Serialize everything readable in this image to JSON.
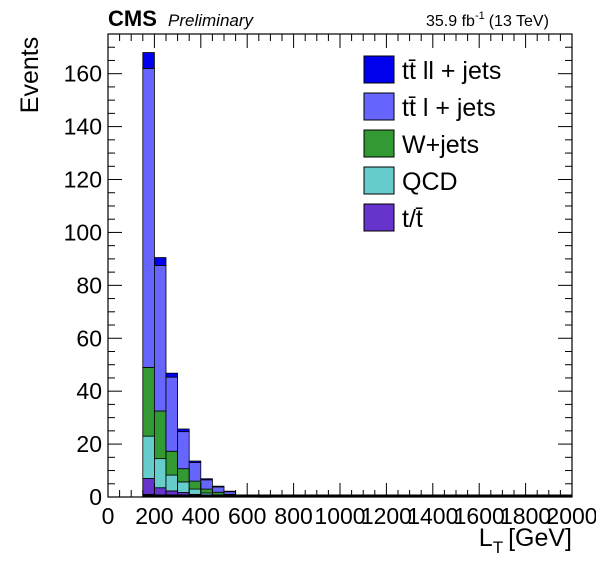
{
  "header": {
    "experiment": "CMS",
    "status": "Preliminary",
    "lumi": "35.9 fb",
    "lumi_exp": "-1",
    "energy": "(13 TeV)"
  },
  "chart_data": {
    "type": "bar",
    "style": "stacked-histogram",
    "xlabel": "L",
    "xlabel_sub": "T",
    "xlabel_unit": "[GeV]",
    "ylabel": "Events",
    "xlim": [
      0,
      2000
    ],
    "ylim": [
      0,
      175
    ],
    "x_ticks": [
      "0",
      "200",
      "400",
      "600",
      "800",
      "1000",
      "1200",
      "1400",
      "1600",
      "1800",
      "2000"
    ],
    "y_ticks": [
      "0",
      "20",
      "40",
      "60",
      "80",
      "100",
      "120",
      "140",
      "160"
    ],
    "bin_edges": [
      150,
      200,
      250,
      300,
      350,
      400,
      450,
      500,
      550,
      600,
      650,
      700
    ],
    "legend_position": "top-right",
    "series": [
      {
        "name": "t/t̄",
        "legend": "t/t̄",
        "color": "#6633cc",
        "values": [
          6,
          3,
          2,
          1.5,
          1,
          0.5,
          0.3,
          0.2,
          0,
          0,
          0
        ]
      },
      {
        "name": "QCD",
        "legend": "QCD",
        "color": "#66cccc",
        "values": [
          16,
          11,
          6,
          4,
          2,
          1,
          0.5,
          0.3,
          0,
          0,
          0
        ]
      },
      {
        "name": "W+jets",
        "legend": "W+jets",
        "color": "#339933",
        "values": [
          26,
          18,
          9,
          5,
          3,
          1.5,
          1,
          0.5,
          0,
          0,
          0
        ]
      },
      {
        "name": "tt̄ l + jets",
        "legend": "tt̄ l + jets",
        "color": "#6666ff",
        "values": [
          113,
          55,
          28,
          14,
          7,
          3.5,
          2,
          1,
          0.5,
          0.3,
          0
        ]
      },
      {
        "name": "tt̄ ll + jets",
        "legend": "tt̄ ll + jets",
        "color": "#0000ee",
        "values": [
          6,
          3,
          1.5,
          1,
          0.6,
          0.4,
          0.3,
          0.2,
          0.2,
          0.1,
          0.1
        ]
      }
    ],
    "minor_series_colors": [
      "#cc3333",
      "#ff9966"
    ],
    "minor_series_values": [
      1,
      0.5,
      0.3,
      0.2,
      0,
      0,
      0,
      0,
      0,
      0,
      0
    ],
    "grid": false
  }
}
